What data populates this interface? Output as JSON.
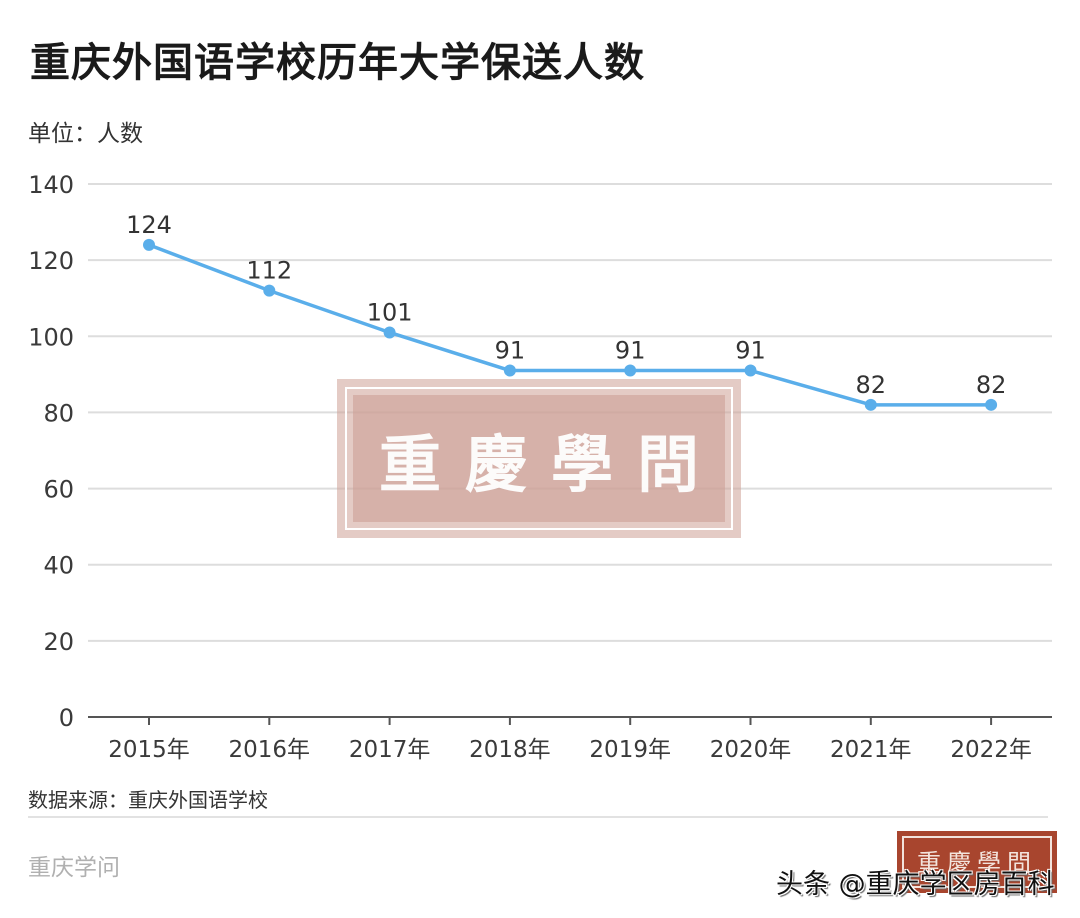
{
  "header": {
    "title": "重庆外国语学校历年大学保送人数",
    "unit": "单位：人数"
  },
  "footer": {
    "source": "数据来源：重庆外国语学校",
    "brand": "重庆学问",
    "watermark_large": "重慶學問",
    "watermark_small": "重慶學問",
    "toutiao_handle": "头条 @重庆学区房百科"
  },
  "colors": {
    "line": "#5aaeea",
    "grid": "#dddddd",
    "axis": "#555555",
    "watermark": "#cda096",
    "stamp": "#a8452e"
  },
  "chart_data": {
    "type": "line",
    "title": "重庆外国语学校历年大学保送人数",
    "subtitle": "单位：人数",
    "xlabel": "",
    "ylabel": "人数",
    "categories": [
      "2015年",
      "2016年",
      "2017年",
      "2018年",
      "2019年",
      "2020年",
      "2021年",
      "2022年"
    ],
    "series": [
      {
        "name": "保送人数",
        "values": [
          124,
          112,
          101,
          91,
          91,
          91,
          82,
          82
        ]
      }
    ],
    "ylim": [
      0,
      140
    ],
    "yticks": [
      0,
      20,
      40,
      60,
      80,
      100,
      120,
      140
    ],
    "grid": true,
    "legend": "none",
    "data_labels": true,
    "source": "数据来源：重庆外国语学校"
  }
}
